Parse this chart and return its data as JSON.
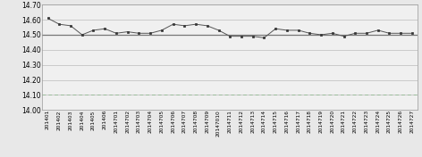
{
  "x_labels": [
    "201401",
    "201402",
    "201403",
    "201404",
    "201405",
    "201406",
    "2014701",
    "2014702",
    "2014703",
    "2014704",
    "2014705",
    "2014706",
    "2014707",
    "2014708",
    "2014709",
    "20147010",
    "2014711",
    "2014712",
    "2014713",
    "2014714",
    "2014715",
    "2014716",
    "2014717",
    "2014718",
    "2014719",
    "2014720",
    "2014721",
    "2014722",
    "2014723",
    "2014724",
    "2014725",
    "2014726",
    "2014727"
  ],
  "values": [
    14.61,
    14.57,
    14.56,
    14.5,
    14.53,
    14.54,
    14.51,
    14.52,
    14.51,
    14.51,
    14.53,
    14.57,
    14.56,
    14.57,
    14.56,
    14.53,
    14.49,
    14.49,
    14.49,
    14.48,
    14.54,
    14.53,
    14.53,
    14.51,
    14.5,
    14.51,
    14.49,
    14.51,
    14.51,
    14.53,
    14.51,
    14.51,
    14.51
  ],
  "hline_value": 14.5,
  "hline_dashed_value": 14.1,
  "ylim": [
    14.0,
    14.7
  ],
  "yticks": [
    14.0,
    14.1,
    14.2,
    14.3,
    14.4,
    14.5,
    14.6,
    14.7
  ],
  "line_color": "#555555",
  "marker_color": "#333333",
  "hline_color": "#777777",
  "hline_dashed_color": "#99bb99",
  "bg_color": "#e8e8e8",
  "plot_bg_color": "#f0f0f0",
  "grid_color": "#bbbbbb",
  "axis_label_fontsize": 4.2,
  "tick_fontsize": 5.5
}
